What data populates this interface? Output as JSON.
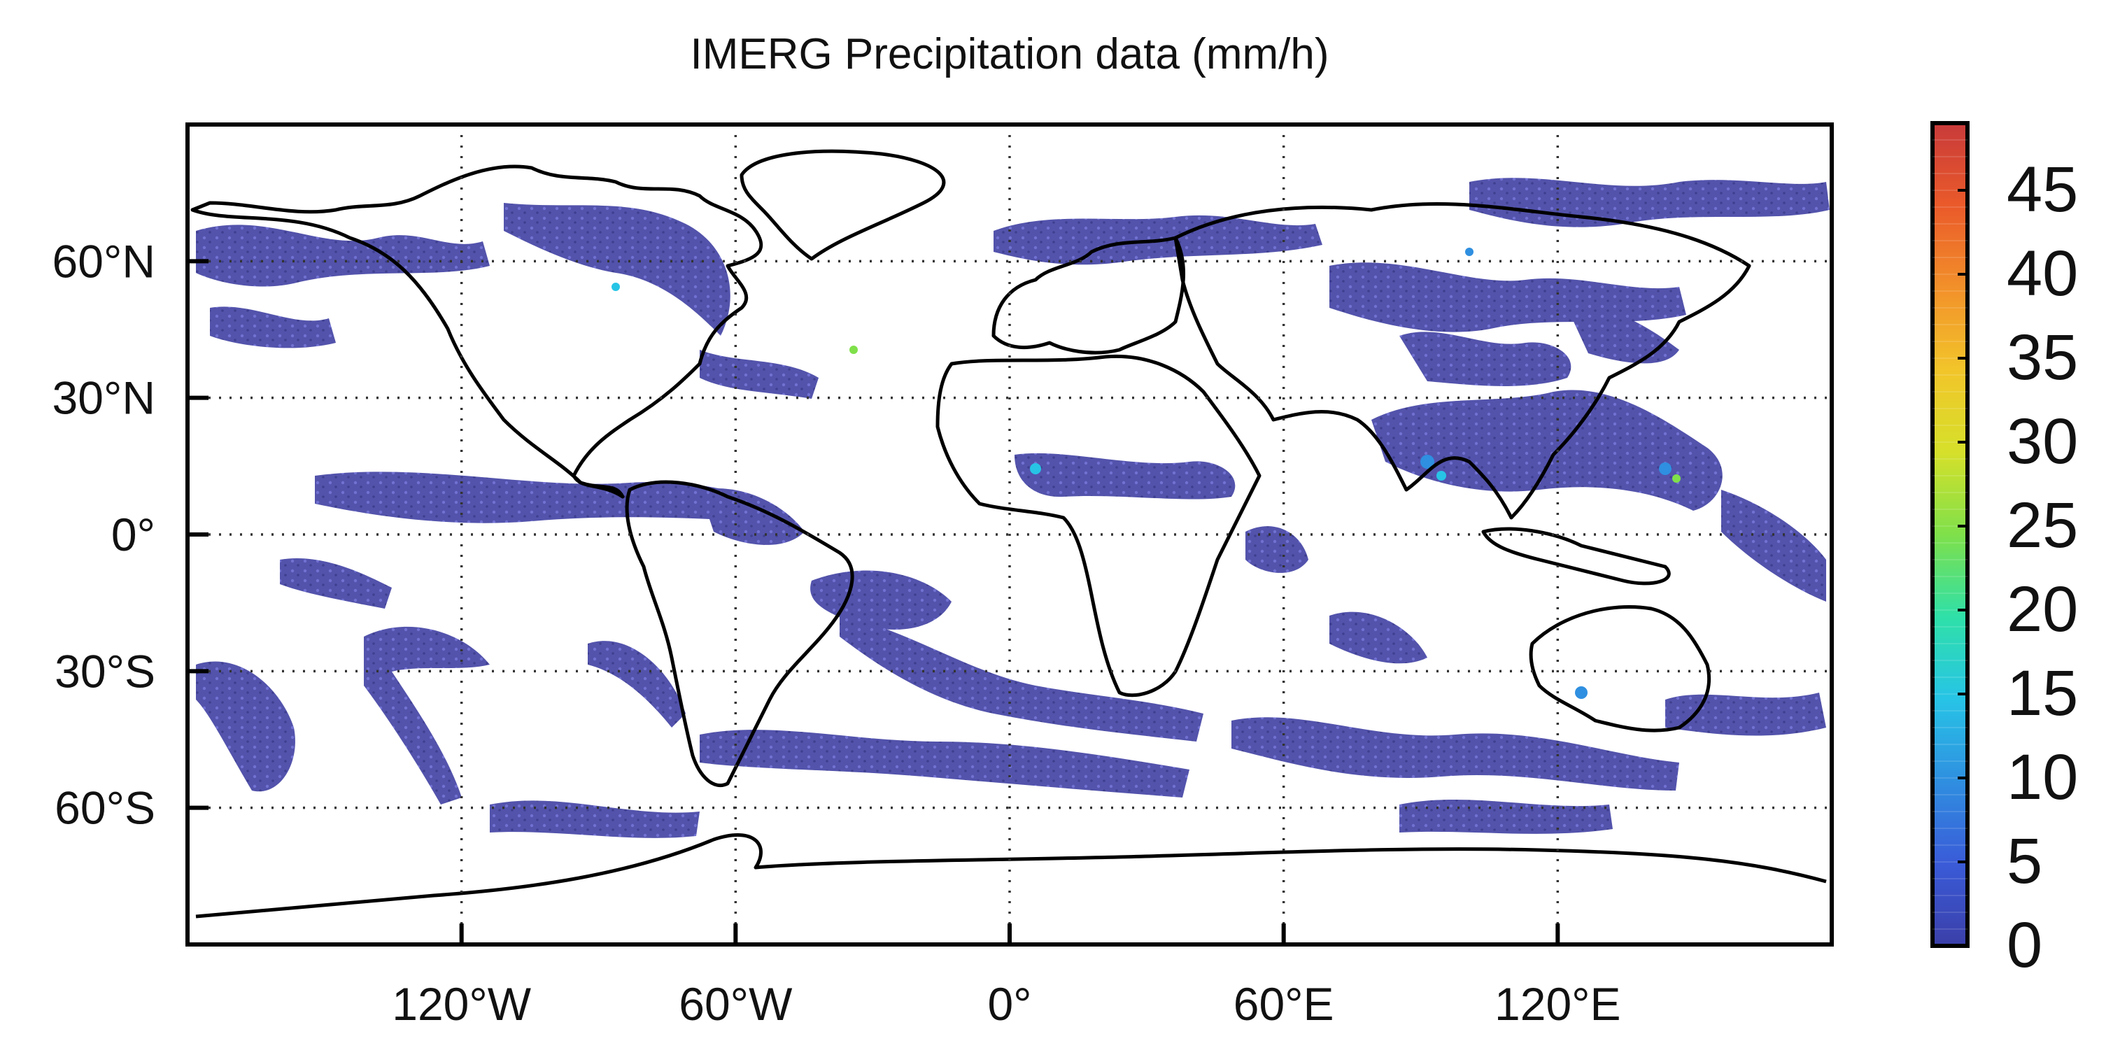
{
  "title": "IMERG Precipitation data (mm/h)",
  "map": {
    "projection": "equirectangular",
    "lon_range": [
      -180,
      180
    ],
    "lat_range": [
      -90,
      90
    ],
    "gridlines": "dotted",
    "grid_lons": [
      -120,
      -60,
      0,
      60,
      120
    ],
    "grid_lats": [
      60,
      30,
      0,
      -30,
      -60
    ],
    "lon_tick_labels": [
      "120°W",
      "60°W",
      "0°",
      "60°E",
      "120°E"
    ],
    "lat_tick_labels": [
      "60°N",
      "30°N",
      "0°",
      "30°S",
      "60°S"
    ],
    "background_color": "#ffffff",
    "coastline_color": "#000000"
  },
  "colorbar": {
    "colormap": "jet",
    "orientation": "vertical",
    "placement": "right",
    "range": [
      0,
      49
    ],
    "tick_values": [
      0,
      5,
      10,
      15,
      20,
      25,
      30,
      35,
      40,
      45
    ],
    "tick_labels": [
      "0",
      "5",
      "10",
      "15",
      "20",
      "25",
      "30",
      "35",
      "40",
      "45"
    ],
    "colors": [
      "#3b3fa8",
      "#3a5bd8",
      "#2f8fe0",
      "#27c4e6",
      "#2fe0a8",
      "#7fe04a",
      "#d6e02a",
      "#f2c52a",
      "#f2902a",
      "#ea5a2a",
      "#c83a3a"
    ]
  },
  "precip_fill_color": "#4a4aa8",
  "precip_highlight_colors": [
    "#2f8fe0",
    "#27c4e6",
    "#7fe04a"
  ]
}
